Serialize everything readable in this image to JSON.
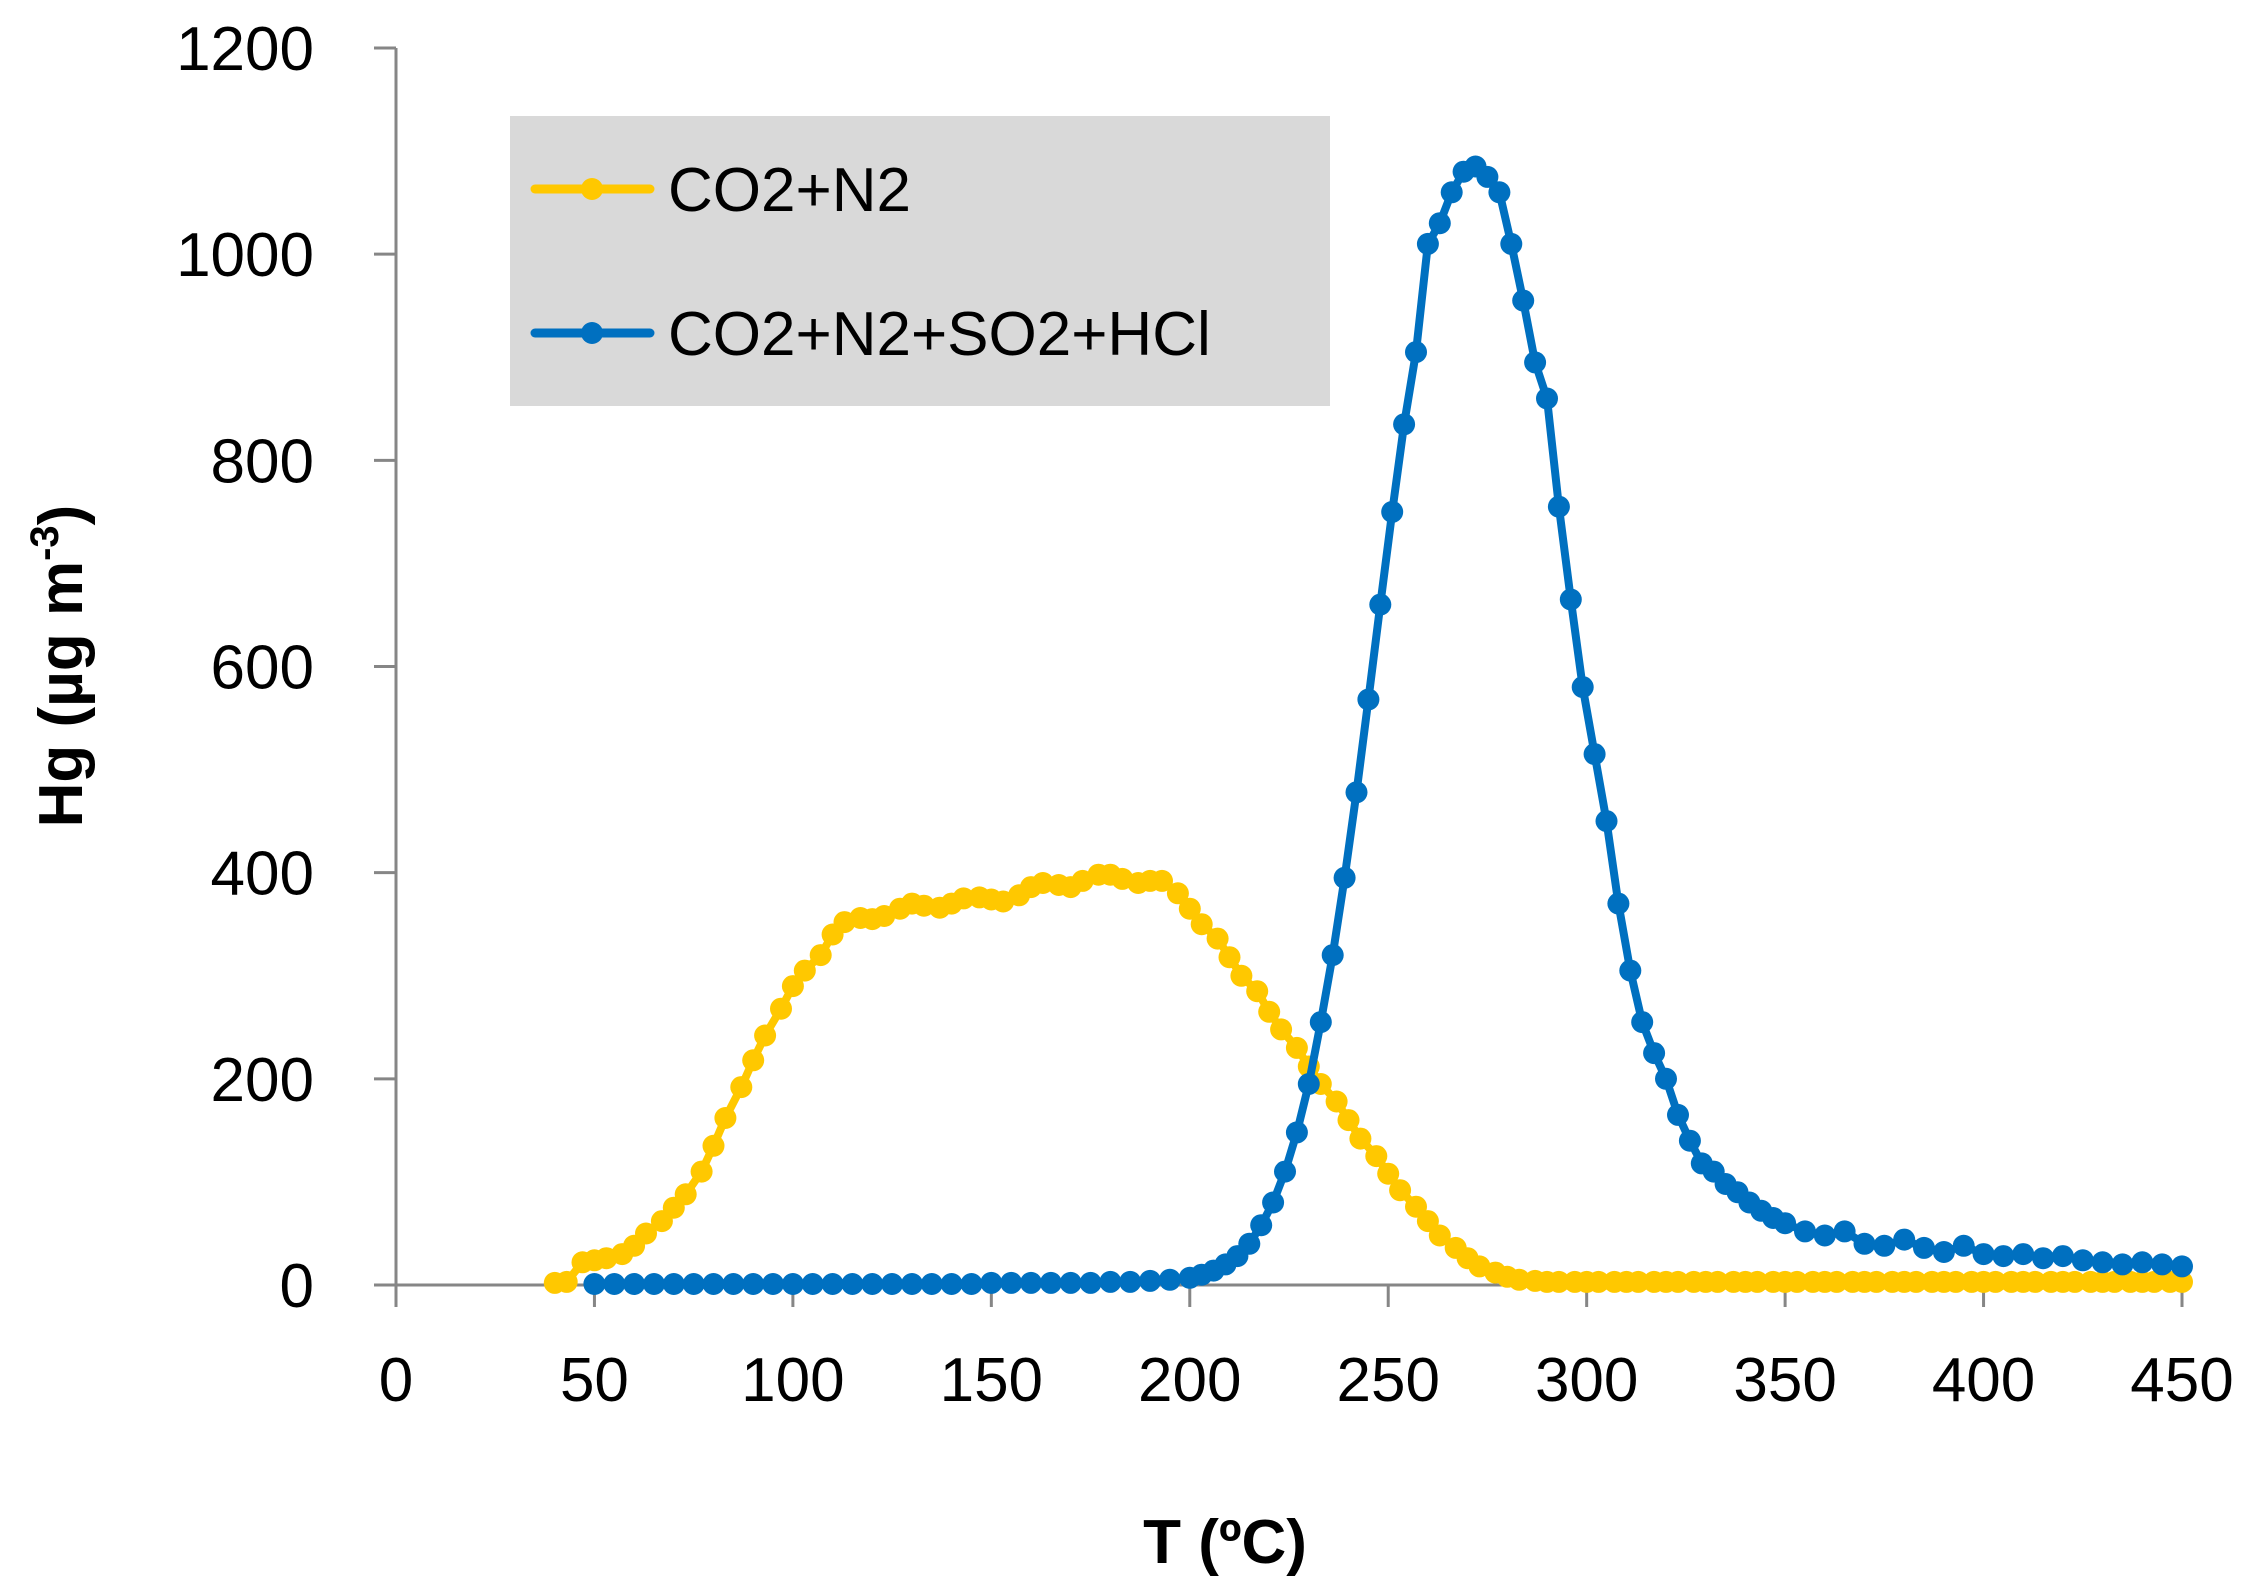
{
  "chart_data": {
    "type": "line",
    "title": "",
    "xlabel": "T (ºC)",
    "ylabel_main": "Hg (µg m",
    "ylabel_sup": "-3",
    "ylabel_close": ")",
    "xlim": [
      0,
      450
    ],
    "ylim": [
      0,
      1200
    ],
    "xticks": [
      0,
      50,
      100,
      150,
      200,
      250,
      300,
      350,
      400,
      450
    ],
    "yticks": [
      0,
      200,
      400,
      600,
      800,
      1000,
      1200
    ],
    "grid": false,
    "legend_position": "top-left",
    "series": [
      {
        "name": "CO2+N2",
        "color": "#FFC800",
        "x": [
          40,
          43,
          47,
          50,
          53,
          57,
          60,
          63,
          67,
          70,
          73,
          77,
          80,
          83,
          87,
          90,
          93,
          97,
          100,
          103,
          107,
          110,
          113,
          117,
          120,
          123,
          127,
          130,
          133,
          137,
          140,
          143,
          147,
          150,
          153,
          157,
          160,
          163,
          167,
          170,
          173,
          177,
          180,
          183,
          187,
          190,
          193,
          197,
          200,
          203,
          207,
          210,
          213,
          217,
          220,
          223,
          227,
          230,
          233,
          237,
          240,
          243,
          247,
          250,
          253,
          257,
          260,
          263,
          267,
          270,
          273,
          277,
          280,
          283,
          287,
          290,
          293,
          297,
          300,
          303,
          307,
          310,
          313,
          317,
          320,
          323,
          327,
          330,
          333,
          337,
          340,
          343,
          347,
          350,
          353,
          357,
          360,
          363,
          367,
          370,
          373,
          377,
          380,
          383,
          387,
          390,
          393,
          397,
          400,
          403,
          407,
          410,
          413,
          417,
          420,
          423,
          427,
          430,
          433,
          437,
          440,
          443,
          447,
          450
        ],
        "values": [
          2,
          3,
          22,
          24,
          26,
          30,
          38,
          50,
          62,
          75,
          88,
          110,
          135,
          162,
          192,
          218,
          242,
          268,
          290,
          305,
          320,
          340,
          352,
          356,
          355,
          358,
          365,
          370,
          368,
          366,
          370,
          375,
          376,
          374,
          372,
          378,
          386,
          390,
          388,
          386,
          392,
          398,
          398,
          394,
          390,
          392,
          392,
          380,
          365,
          350,
          336,
          318,
          300,
          285,
          265,
          248,
          230,
          212,
          195,
          178,
          160,
          142,
          125,
          108,
          92,
          76,
          62,
          48,
          36,
          26,
          18,
          12,
          8,
          5,
          4,
          3,
          3,
          3,
          3,
          3,
          3,
          3,
          3,
          3,
          3,
          3,
          3,
          3,
          3,
          3,
          3,
          3,
          3,
          3,
          3,
          3,
          3,
          3,
          3,
          3,
          3,
          3,
          3,
          3,
          3,
          3,
          3,
          3,
          3,
          3,
          3,
          3,
          3,
          3,
          3,
          3,
          3,
          3,
          3,
          3,
          3,
          3,
          3,
          3
        ]
      },
      {
        "name": "CO2+N2+SO2+HCl",
        "color": "#0070C0",
        "x": [
          50,
          55,
          60,
          65,
          70,
          75,
          80,
          85,
          90,
          95,
          100,
          105,
          110,
          115,
          120,
          125,
          130,
          135,
          140,
          145,
          150,
          155,
          160,
          165,
          170,
          175,
          180,
          185,
          190,
          195,
          200,
          203,
          206,
          209,
          212,
          215,
          218,
          221,
          224,
          227,
          230,
          233,
          236,
          239,
          242,
          245,
          248,
          251,
          254,
          257,
          260,
          263,
          266,
          269,
          272,
          275,
          278,
          281,
          284,
          287,
          290,
          293,
          296,
          299,
          302,
          305,
          308,
          311,
          314,
          317,
          320,
          323,
          326,
          329,
          332,
          335,
          338,
          341,
          344,
          347,
          350,
          355,
          360,
          365,
          370,
          375,
          380,
          385,
          390,
          395,
          400,
          405,
          410,
          415,
          420,
          425,
          430,
          435,
          440,
          445,
          450
        ],
        "values": [
          1,
          1,
          1,
          1,
          1,
          1,
          1,
          1,
          1,
          1,
          1,
          1,
          1,
          1,
          1,
          1,
          1,
          1,
          1,
          1,
          2,
          2,
          2,
          2,
          2,
          2,
          3,
          3,
          4,
          5,
          7,
          10,
          14,
          20,
          28,
          40,
          58,
          80,
          110,
          148,
          195,
          255,
          320,
          395,
          478,
          568,
          660,
          750,
          835,
          905,
          1010,
          1030,
          1060,
          1080,
          1085,
          1075,
          1060,
          1010,
          955,
          895,
          860,
          755,
          665,
          580,
          515,
          450,
          370,
          305,
          255,
          225,
          200,
          165,
          140,
          118,
          110,
          98,
          90,
          80,
          72,
          65,
          60,
          52,
          48,
          52,
          40,
          38,
          44,
          36,
          32,
          38,
          30,
          28,
          30,
          26,
          28,
          24,
          22,
          20,
          22,
          20,
          18
        ]
      }
    ]
  }
}
